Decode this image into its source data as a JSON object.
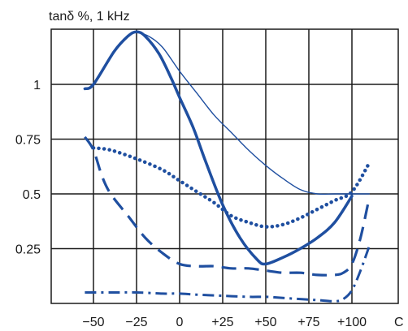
{
  "chart_data": {
    "type": "line",
    "title": "tanδ %, 1 kHz",
    "xlabel": "",
    "ylabel": "",
    "x_unit": "C",
    "xlim": [
      -60,
      110
    ],
    "ylim": [
      0,
      1.25
    ],
    "grid": true,
    "x_ticks": [
      {
        "value": -50,
        "label": "−50"
      },
      {
        "value": -25,
        "label": "−25"
      },
      {
        "value": 0,
        "label": "0"
      },
      {
        "value": 25,
        "label": "+25"
      },
      {
        "value": 50,
        "label": "+50"
      },
      {
        "value": 75,
        "label": "+75"
      },
      {
        "value": 100,
        "label": "+100"
      }
    ],
    "y_ticks": [
      {
        "value": 0.25,
        "label": "0.25"
      },
      {
        "value": 0.5,
        "label": "0.5"
      },
      {
        "value": 0.75,
        "label": "0.75"
      },
      {
        "value": 1,
        "label": "1"
      }
    ],
    "series": [
      {
        "style": "solid-thick",
        "color": "#1f4fa0",
        "x": [
          -55,
          -50,
          -38,
          -30,
          -25,
          -20,
          -12,
          -5,
          0,
          8,
          15,
          25,
          35,
          45,
          50,
          60,
          70,
          80,
          90,
          100
        ],
        "y": [
          0.98,
          1.0,
          1.15,
          1.22,
          1.24,
          1.22,
          1.14,
          1.03,
          0.94,
          0.8,
          0.65,
          0.45,
          0.3,
          0.2,
          0.18,
          0.21,
          0.25,
          0.3,
          0.37,
          0.49
        ]
      },
      {
        "style": "solid-thin",
        "color": "#1f4fa0",
        "x": [
          -25,
          -18,
          -10,
          0,
          10,
          20,
          30,
          40,
          50,
          60,
          70,
          80,
          90,
          100,
          110
        ],
        "y": [
          1.24,
          1.22,
          1.17,
          1.06,
          0.96,
          0.86,
          0.78,
          0.7,
          0.63,
          0.57,
          0.52,
          0.5,
          0.5,
          0.5,
          0.5
        ]
      },
      {
        "style": "dotted",
        "color": "#1f4fa0",
        "x": [
          -50,
          -40,
          -25,
          -10,
          0,
          10,
          20,
          30,
          40,
          50,
          60,
          70,
          80,
          90,
          100,
          110
        ],
        "y": [
          0.71,
          0.7,
          0.66,
          0.61,
          0.56,
          0.51,
          0.46,
          0.4,
          0.37,
          0.35,
          0.36,
          0.39,
          0.43,
          0.47,
          0.51,
          0.64
        ]
      },
      {
        "style": "dashed",
        "color": "#1f4fa0",
        "x": [
          -55,
          -50,
          -45,
          -40,
          -30,
          -20,
          -10,
          0,
          10,
          20,
          30,
          40,
          50,
          60,
          70,
          80,
          90,
          95,
          100,
          105,
          110
        ],
        "y": [
          0.76,
          0.7,
          0.58,
          0.5,
          0.4,
          0.3,
          0.23,
          0.18,
          0.17,
          0.17,
          0.16,
          0.16,
          0.15,
          0.14,
          0.14,
          0.13,
          0.13,
          0.14,
          0.18,
          0.3,
          0.48
        ]
      },
      {
        "style": "dash-dot",
        "color": "#1f4fa0",
        "x": [
          -55,
          -40,
          -25,
          -10,
          0,
          10,
          25,
          40,
          50,
          60,
          70,
          80,
          90,
          95,
          100,
          105,
          110
        ],
        "y": [
          0.05,
          0.05,
          0.05,
          0.045,
          0.045,
          0.04,
          0.035,
          0.03,
          0.03,
          0.025,
          0.02,
          0.015,
          0.01,
          0.02,
          0.06,
          0.15,
          0.26
        ]
      }
    ]
  }
}
